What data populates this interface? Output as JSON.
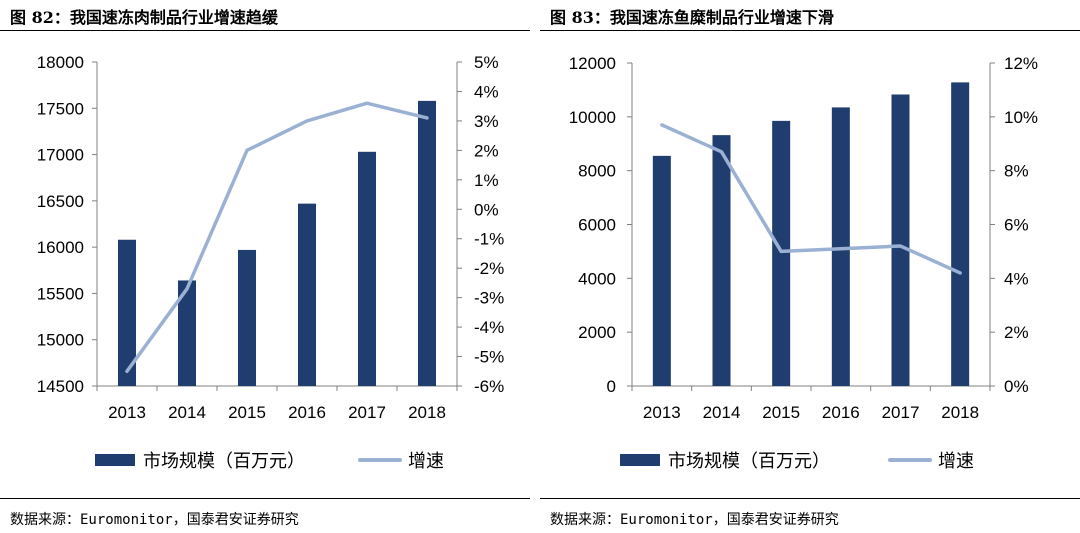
{
  "charts": [
    {
      "figure_title": "图 82：我国速冻肉制品行业增速趋缓",
      "source": "数据来源：Euromonitor，国泰君安证券研究",
      "legend": {
        "bar_label": "市场规模（百万元）",
        "line_label": "增速"
      },
      "colors": {
        "bar": "#1f3d6e",
        "line": "#9bb1d4"
      }
    },
    {
      "figure_title": "图 83：我国速冻鱼糜制品行业增速下滑",
      "source": "数据来源：Euromonitor，国泰君安证券研究",
      "legend": {
        "bar_label": "市场规模（百万元）",
        "line_label": "增速"
      },
      "colors": {
        "bar": "#1f3d6e",
        "line": "#9bb1d4"
      }
    }
  ],
  "chart_data": [
    {
      "type": "bar",
      "categories": [
        "2013",
        "2014",
        "2015",
        "2016",
        "2017",
        "2018"
      ],
      "series": [
        {
          "name": "市场规模（百万元）",
          "type": "bar",
          "axis": "left",
          "values": [
            16080,
            15640,
            15970,
            16470,
            17030,
            17580
          ]
        },
        {
          "name": "增速",
          "type": "line",
          "axis": "right",
          "values": [
            -5.5,
            -2.7,
            2.0,
            3.0,
            3.6,
            3.1
          ]
        }
      ],
      "y_left": {
        "min": 14500,
        "max": 18000,
        "ticks": [
          "14500",
          "15000",
          "15500",
          "16000",
          "16500",
          "17000",
          "17500",
          "18000"
        ]
      },
      "y_right": {
        "min": -6,
        "max": 5,
        "ticks": [
          "-6%",
          "-5%",
          "-4%",
          "-3%",
          "-2%",
          "-1%",
          "0%",
          "1%",
          "2%",
          "3%",
          "4%",
          "5%"
        ]
      },
      "grid": false,
      "legend_position": "bottom"
    },
    {
      "type": "bar",
      "categories": [
        "2013",
        "2014",
        "2015",
        "2016",
        "2017",
        "2018"
      ],
      "series": [
        {
          "name": "市场规模（百万元）",
          "type": "bar",
          "axis": "left",
          "values": [
            8550,
            9320,
            9850,
            10350,
            10830,
            11280
          ]
        },
        {
          "name": "增速",
          "type": "line",
          "axis": "right",
          "values": [
            9.7,
            8.7,
            5.0,
            5.1,
            5.2,
            4.2
          ]
        }
      ],
      "y_left": {
        "min": 0,
        "max": 12000,
        "ticks": [
          "0",
          "2000",
          "4000",
          "6000",
          "8000",
          "10000",
          "12000"
        ]
      },
      "y_right": {
        "min": 0,
        "max": 12,
        "ticks": [
          "0%",
          "2%",
          "4%",
          "6%",
          "8%",
          "10%",
          "12%"
        ]
      },
      "grid": false,
      "legend_position": "bottom"
    }
  ]
}
